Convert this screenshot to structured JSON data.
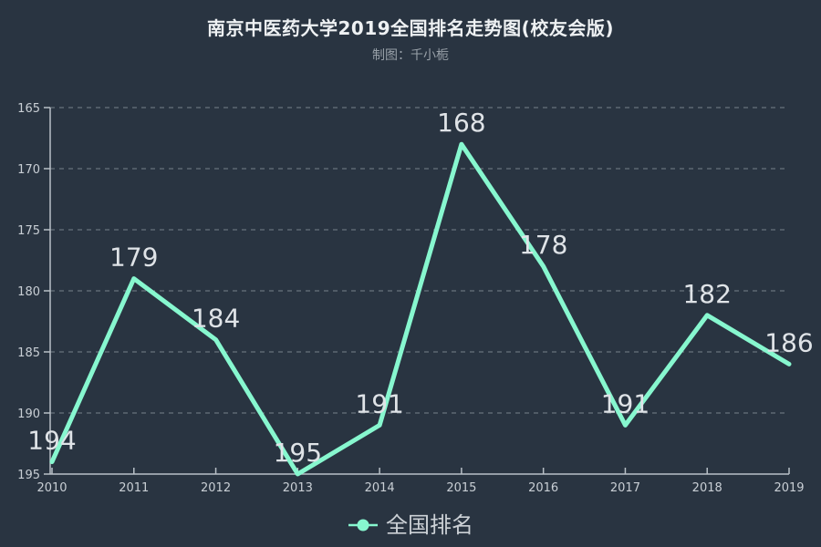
{
  "chart_data": {
    "type": "line",
    "title": "南京中医药大学2019全国排名走势图(校友会版)",
    "subtitle": "制图：千小栀",
    "categories": [
      "2010",
      "2011",
      "2012",
      "2013",
      "2014",
      "2015",
      "2016",
      "2017",
      "2018",
      "2019"
    ],
    "series": [
      {
        "name": "全国排名",
        "values": [
          194,
          179,
          184,
          195,
          191,
          168,
          178,
          191,
          182,
          186
        ]
      }
    ],
    "y_ticks": [
      165,
      170,
      175,
      180,
      185,
      190,
      195
    ],
    "ylim": [
      165,
      195
    ],
    "y_axis_inverted": true,
    "xlabel": "",
    "ylabel": "",
    "grid": "horizontal-dashed",
    "legend_position": "bottom",
    "data_labels_shown": true,
    "line_width": 5,
    "colors": {
      "background": "#293441",
      "line": "#87f7cf",
      "title_text": "#eef1f3",
      "subtitle_text": "#98a0a8",
      "axis_text": "#c9cfd5",
      "data_label_text": "#dfe3e7",
      "grid_line": "#78828b",
      "axis_line": "#b9c0c7",
      "legend_text": "#ccd1d6"
    }
  }
}
